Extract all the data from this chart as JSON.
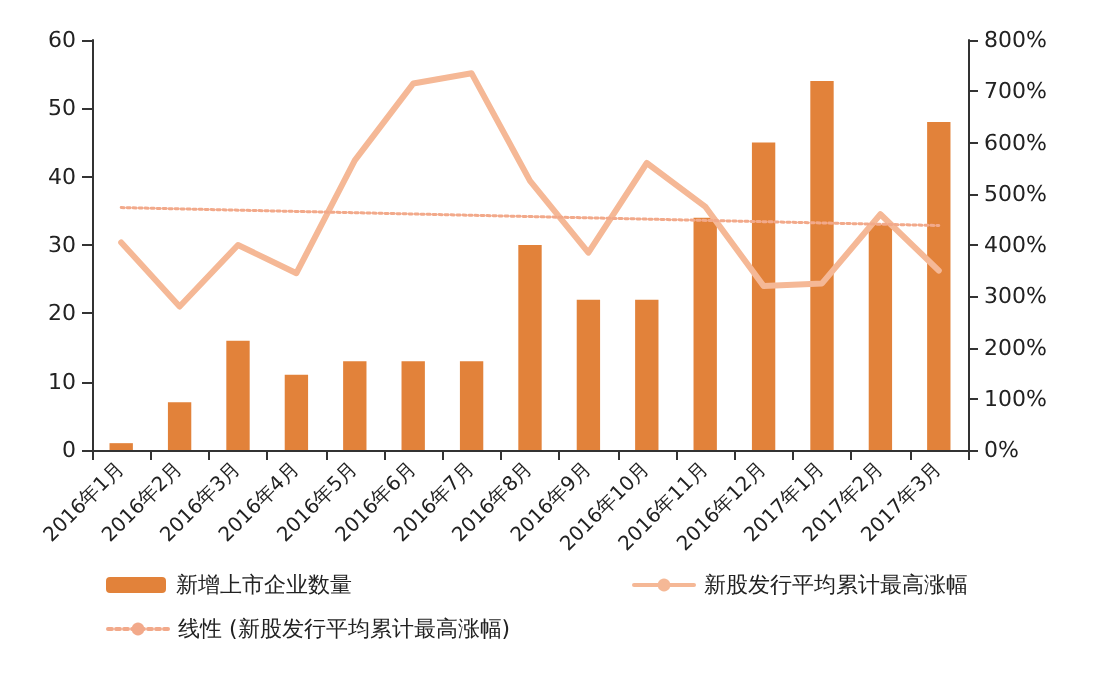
{
  "chart_data": {
    "type": "bar",
    "categories": [
      "2016年1月",
      "2016年2月",
      "2016年3月",
      "2016年4月",
      "2016年5月",
      "2016年6月",
      "2016年7月",
      "2016年8月",
      "2016年9月",
      "2016年10月",
      "2016年11月",
      "2016年12月",
      "2017年1月",
      "2017年2月",
      "2017年3月"
    ],
    "series": [
      {
        "name": "新增上市企业数量",
        "color": "#e2823a",
        "values": [
          1,
          7,
          16,
          11,
          13,
          13,
          13,
          30,
          22,
          22,
          34,
          45,
          54,
          33,
          48
        ]
      },
      {
        "name": "新股发行平均累计最高涨幅",
        "type": "line",
        "axis": "y2",
        "color": "#f5b896",
        "line_style": "solid",
        "values": [
          405,
          280,
          400,
          345,
          565,
          715,
          735,
          525,
          385,
          560,
          475,
          320,
          325,
          460,
          350
        ]
      },
      {
        "name": "线性 (新股发行平均累计最高涨幅)",
        "type": "line",
        "axis": "y2",
        "color": "#f2a98a",
        "line_style": "dotted",
        "x": [
          "2016年1月",
          "2017年3月"
        ],
        "values": [
          473,
          438
        ]
      }
    ],
    "ylim": [
      0,
      60
    ],
    "yticks": [
      0,
      10,
      20,
      30,
      40,
      50,
      60
    ],
    "y2lim": [
      0,
      800
    ],
    "y2ticks": [
      {
        "value": 0,
        "label": "0%"
      },
      {
        "value": 100,
        "label": "100%"
      },
      {
        "value": 200,
        "label": "200%"
      },
      {
        "value": 300,
        "label": "300%"
      },
      {
        "value": 400,
        "label": "400%"
      },
      {
        "value": 500,
        "label": "500%"
      },
      {
        "value": 600,
        "label": "600%"
      },
      {
        "value": 700,
        "label": "700%"
      },
      {
        "value": 800,
        "label": "800%"
      }
    ],
    "grid": false,
    "legend": "bottom",
    "marker": "none"
  }
}
